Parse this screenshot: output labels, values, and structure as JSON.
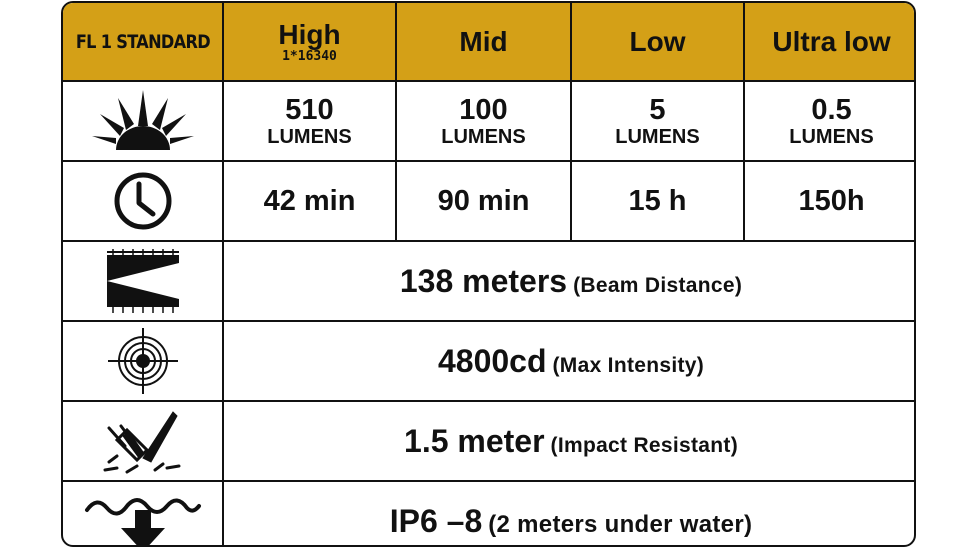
{
  "header": {
    "model_label": "FL 1 STANDARD",
    "modes": [
      {
        "label": "High",
        "sub": "1*16340"
      },
      {
        "label": "Mid",
        "sub": ""
      },
      {
        "label": "Low",
        "sub": ""
      },
      {
        "label": "Ultra low",
        "sub": ""
      }
    ]
  },
  "output_row": {
    "icon": "sun-rays-icon",
    "unit": "LUMENS",
    "values": [
      "510",
      "100",
      "5",
      "0.5"
    ]
  },
  "runtime_row": {
    "icon": "clock-icon",
    "values": [
      "42 min",
      "90 min",
      "15 h",
      "150h"
    ]
  },
  "specs": [
    {
      "icon": "beam-distance-icon",
      "value": "138 meters",
      "note": "(Beam Distance)"
    },
    {
      "icon": "target-intensity-icon",
      "value": "4800cd",
      "note": "(Max Intensity)"
    },
    {
      "icon": "impact-resistant-icon",
      "value": "1.5 meter",
      "note": "(Impact Resistant)"
    },
    {
      "icon": "waterproof-icon",
      "value": "IP6 –8",
      "note": "(2 meters under water)"
    }
  ],
  "colors": {
    "header_bg": "#d4a017",
    "border": "#111111",
    "cell_bg": "#ffffff"
  }
}
